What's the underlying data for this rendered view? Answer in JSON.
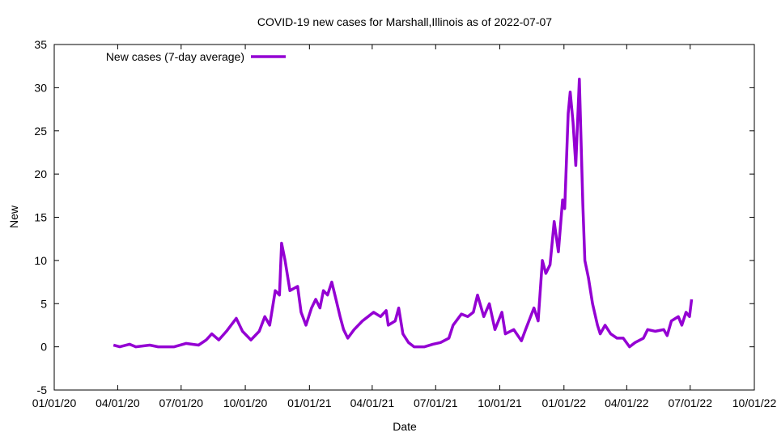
{
  "chart_data": {
    "type": "line",
    "title": "COVID-19 new cases for Marshall,Illinois as of 2022-07-07",
    "xlabel": "Date",
    "ylabel": "New",
    "x_origin_date": "2020-01-01",
    "x_units": "days since x_origin_date",
    "xlim": [
      0,
      1004
    ],
    "ylim": [
      -5,
      35
    ],
    "grid": false,
    "legend_placement": "top-left",
    "x_ticks": [
      {
        "day": 0,
        "label": "01/01/20"
      },
      {
        "day": 91,
        "label": "04/01/20"
      },
      {
        "day": 182,
        "label": "07/01/20"
      },
      {
        "day": 274,
        "label": "10/01/20"
      },
      {
        "day": 366,
        "label": "01/01/21"
      },
      {
        "day": 456,
        "label": "04/01/21"
      },
      {
        "day": 547,
        "label": "07/01/21"
      },
      {
        "day": 639,
        "label": "10/01/21"
      },
      {
        "day": 731,
        "label": "01/01/22"
      },
      {
        "day": 821,
        "label": "04/01/22"
      },
      {
        "day": 912,
        "label": "07/01/22"
      },
      {
        "day": 1004,
        "label": "10/01/22"
      }
    ],
    "y_ticks": [
      -5,
      0,
      5,
      10,
      15,
      20,
      25,
      30,
      35
    ],
    "series": [
      {
        "name": "New cases (7-day average)",
        "color": "#9400d3",
        "points": [
          [
            85,
            0.2
          ],
          [
            94,
            0
          ],
          [
            108,
            0.3
          ],
          [
            117,
            0
          ],
          [
            137,
            0.2
          ],
          [
            149,
            0
          ],
          [
            172,
            0
          ],
          [
            189,
            0.4
          ],
          [
            207,
            0.2
          ],
          [
            218,
            0.8
          ],
          [
            226,
            1.5
          ],
          [
            236,
            0.8
          ],
          [
            247,
            1.8
          ],
          [
            261,
            3.3
          ],
          [
            270,
            1.8
          ],
          [
            282,
            0.8
          ],
          [
            294,
            1.8
          ],
          [
            302,
            3.5
          ],
          [
            309,
            2.5
          ],
          [
            317,
            6.5
          ],
          [
            323,
            6
          ],
          [
            326,
            12
          ],
          [
            331,
            10
          ],
          [
            338,
            6.5
          ],
          [
            349,
            7
          ],
          [
            354,
            4
          ],
          [
            361,
            2.5
          ],
          [
            369,
            4.5
          ],
          [
            375,
            5.5
          ],
          [
            381,
            4.5
          ],
          [
            386,
            6.5
          ],
          [
            392,
            6
          ],
          [
            398,
            7.5
          ],
          [
            404,
            5.5
          ],
          [
            410,
            3.5
          ],
          [
            415,
            2
          ],
          [
            421,
            1
          ],
          [
            430,
            2
          ],
          [
            442,
            3
          ],
          [
            450,
            3.5
          ],
          [
            458,
            4
          ],
          [
            468,
            3.5
          ],
          [
            476,
            4.2
          ],
          [
            479,
            2.5
          ],
          [
            489,
            3
          ],
          [
            494,
            4.5
          ],
          [
            500,
            1.5
          ],
          [
            508,
            0.5
          ],
          [
            516,
            0
          ],
          [
            531,
            0
          ],
          [
            543,
            0.3
          ],
          [
            554,
            0.5
          ],
          [
            566,
            1
          ],
          [
            572,
            2.5
          ],
          [
            584,
            3.8
          ],
          [
            593,
            3.5
          ],
          [
            601,
            4
          ],
          [
            607,
            6
          ],
          [
            616,
            3.5
          ],
          [
            624,
            5
          ],
          [
            632,
            2
          ],
          [
            642,
            4
          ],
          [
            647,
            1.5
          ],
          [
            659,
            2
          ],
          [
            670,
            0.7
          ],
          [
            676,
            2
          ],
          [
            688,
            4.5
          ],
          [
            694,
            3
          ],
          [
            700,
            10
          ],
          [
            705,
            8.5
          ],
          [
            711,
            9.5
          ],
          [
            717,
            14.5
          ],
          [
            723,
            11
          ],
          [
            729,
            17
          ],
          [
            732,
            16
          ],
          [
            737,
            27
          ],
          [
            740,
            29.5
          ],
          [
            744,
            26
          ],
          [
            748,
            21
          ],
          [
            753,
            31
          ],
          [
            758,
            16.5
          ],
          [
            761,
            10
          ],
          [
            766,
            8
          ],
          [
            772,
            5
          ],
          [
            779,
            2.5
          ],
          [
            783,
            1.5
          ],
          [
            790,
            2.5
          ],
          [
            798,
            1.5
          ],
          [
            807,
            1
          ],
          [
            816,
            1
          ],
          [
            825,
            0
          ],
          [
            833,
            0.5
          ],
          [
            845,
            1
          ],
          [
            851,
            2
          ],
          [
            862,
            1.8
          ],
          [
            874,
            2
          ],
          [
            879,
            1.3
          ],
          [
            885,
            3
          ],
          [
            895,
            3.5
          ],
          [
            900,
            2.5
          ],
          [
            906,
            4
          ],
          [
            911,
            3.5
          ],
          [
            914,
            5.5
          ]
        ]
      }
    ]
  }
}
